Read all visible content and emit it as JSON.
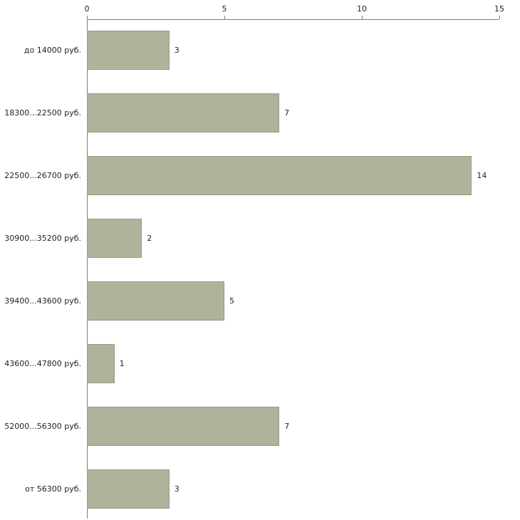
{
  "chart_data": {
    "type": "bar",
    "orientation": "horizontal",
    "title": "",
    "xlabel": "",
    "ylabel": "",
    "categories": [
      "до 14000 руб.",
      "18300...22500 руб.",
      "22500...26700 руб.",
      "30900...35200 руб.",
      "39400...43600 руб.",
      "43600...47800 руб.",
      "52000...56300 руб.",
      "от 56300 руб."
    ],
    "values": [
      3,
      7,
      14,
      2,
      5,
      1,
      7,
      3
    ],
    "xlim": [
      0,
      15
    ],
    "x_ticks": [
      0,
      5,
      10,
      15
    ],
    "grid": false,
    "legend": "none",
    "bar_color": "#aeb49b",
    "bar_border_color": "#969c82",
    "axis_color": "#808080",
    "text_color": "#222222",
    "background_color": "#ffffff"
  }
}
